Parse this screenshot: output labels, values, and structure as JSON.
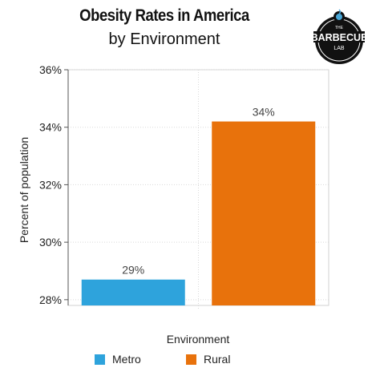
{
  "chart_data": {
    "type": "bar",
    "title": "Obesity Rates in America",
    "subtitle": "by Environment",
    "xlabel": "Environment",
    "ylabel": "Percent of population",
    "categories": [
      "Metro",
      "Rural"
    ],
    "values": [
      28.7,
      34.2
    ],
    "data_labels": [
      "29%",
      "34%"
    ],
    "colors": [
      "#2ea3dc",
      "#e8720c"
    ],
    "ylim": [
      27.8,
      36
    ],
    "yticks": [
      28,
      30,
      32,
      34,
      36
    ],
    "ytick_labels": [
      "28%",
      "30%",
      "32%",
      "34%",
      "36%"
    ],
    "grid": true,
    "legend_position": "bottom"
  },
  "logo": {
    "top_text": "THE",
    "main_text": "BARBECUE",
    "sub_text": "LAB"
  }
}
